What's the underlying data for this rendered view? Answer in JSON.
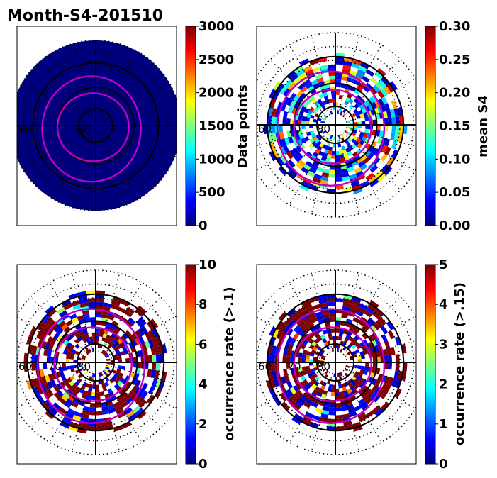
{
  "figure_title": "Month-S4-201510",
  "colormap": [
    "#00007f",
    "#0000ff",
    "#007fff",
    "#00ffff",
    "#7fff7f",
    "#ffff00",
    "#ff7f00",
    "#ff0000",
    "#7f0000"
  ],
  "overlay_color": "#bf00bf",
  "chart_data": [
    {
      "type": "heatmap",
      "projection": "polar",
      "title": "Month-S4-201510",
      "colorbar_label": "Data points",
      "colorbar_ticks": [
        "0",
        "500",
        "1000",
        "1500",
        "2000",
        "2500",
        "3000"
      ],
      "vmin": 0,
      "vmax": 3000,
      "latitude_labels": [
        "60",
        "80"
      ],
      "pattern": "dense"
    },
    {
      "type": "heatmap",
      "projection": "polar",
      "colorbar_label": "mean S4",
      "colorbar_ticks": [
        "0.00",
        "0.05",
        "0.10",
        "0.15",
        "0.20",
        "0.25",
        "0.30"
      ],
      "vmin": 0.0,
      "vmax": 0.3,
      "latitude_labels": [
        "60",
        "70",
        "80"
      ],
      "pattern": "mean"
    },
    {
      "type": "heatmap",
      "projection": "polar",
      "colorbar_label": "occurrence rate (>.1)",
      "colorbar_ticks": [
        "0",
        "2",
        "4",
        "6",
        "8",
        "10"
      ],
      "vmin": 0,
      "vmax": 10,
      "latitude_labels": [
        "60",
        "70",
        "80"
      ],
      "pattern": "occ"
    },
    {
      "type": "heatmap",
      "projection": "polar",
      "colorbar_label": "occurrence rate (>.15)",
      "colorbar_ticks": [
        "0",
        "1",
        "2",
        "3",
        "4",
        "5"
      ],
      "vmin": 0,
      "vmax": 5,
      "latitude_labels": [
        "60",
        "70",
        "80"
      ],
      "pattern": "occ"
    }
  ]
}
